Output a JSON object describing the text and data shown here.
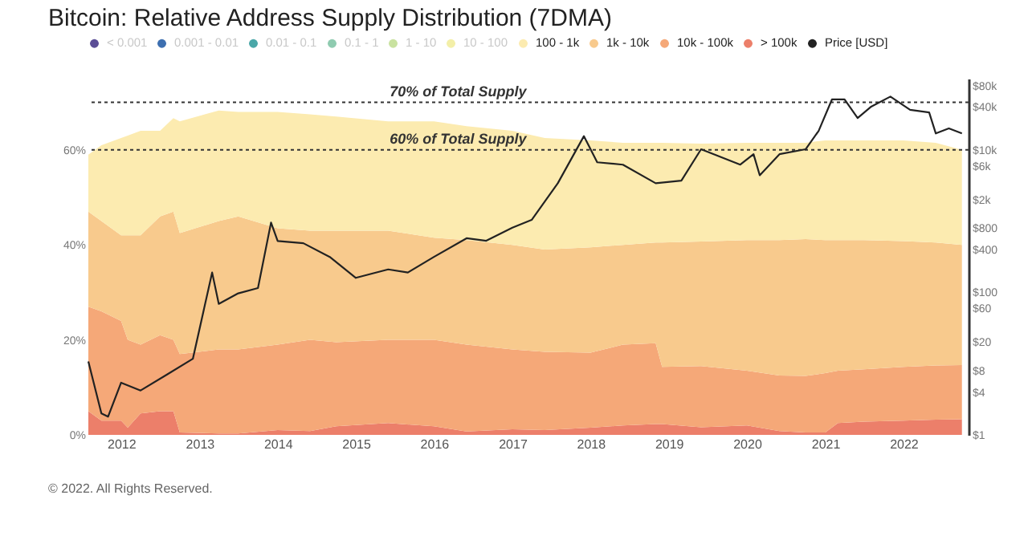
{
  "chart_data": {
    "type": "area",
    "title": "Bitcoin: Relative Address Supply Distribution (7DMA)",
    "stacked": true,
    "legend": "top",
    "log": "y2",
    "x": [
      "2011-08",
      "2011-10",
      "2012-01",
      "2012-02",
      "2012-04",
      "2012-07",
      "2012-09",
      "2012-10",
      "2013-04",
      "2013-07",
      "2014-01",
      "2014-06",
      "2014-10",
      "2015-06",
      "2016-01",
      "2016-06",
      "2017-01",
      "2017-06",
      "2018-01",
      "2018-06",
      "2018-11",
      "2018-12",
      "2019-06",
      "2020-01",
      "2020-06",
      "2020-10",
      "2021-01",
      "2021-03",
      "2021-07",
      "2022-01",
      "2022-06",
      "2022-10"
    ],
    "xlim": [
      "2011-08",
      "2022-11"
    ],
    "xticks": [
      "2012",
      "2013",
      "2014",
      "2015",
      "2016",
      "2017",
      "2018",
      "2019",
      "2020",
      "2021",
      "2022"
    ],
    "ylim": [
      0,
      75
    ],
    "yticks": [
      {
        "value": 0,
        "label": "0%"
      },
      {
        "value": 20,
        "label": "20%"
      },
      {
        "value": 40,
        "label": "40%"
      },
      {
        "value": 60,
        "label": "60%"
      }
    ],
    "y2lim": [
      1,
      100000
    ],
    "y2ticks": [
      {
        "value": 1,
        "label": "$1"
      },
      {
        "value": 4,
        "label": "$4"
      },
      {
        "value": 8,
        "label": "$8"
      },
      {
        "value": 20,
        "label": "$20"
      },
      {
        "value": 60,
        "label": "$60"
      },
      {
        "value": 100,
        "label": "$100"
      },
      {
        "value": 400,
        "label": "$400"
      },
      {
        "value": 800,
        "label": "$800"
      },
      {
        "value": 2000,
        "label": "$2k"
      },
      {
        "value": 6000,
        "label": "$6k"
      },
      {
        "value": 10000,
        "label": "$10k"
      },
      {
        "value": 40000,
        "label": "$40k"
      },
      {
        "value": 80000,
        "label": "$80k"
      }
    ],
    "series": [
      {
        "name": "< 0.001",
        "color": "#5b4e96",
        "values": [
          null,
          null,
          null,
          null,
          null,
          null,
          null,
          null,
          null,
          null,
          null,
          null,
          null,
          null,
          null,
          null,
          null,
          null,
          null,
          null,
          null,
          null,
          null,
          null,
          null,
          null,
          null,
          null,
          null,
          null,
          null,
          null
        ]
      },
      {
        "name": "0.001 - 0.01",
        "color": "#3d6fb0",
        "values": [
          null,
          null,
          null,
          null,
          null,
          null,
          null,
          null,
          null,
          null,
          null,
          null,
          null,
          null,
          null,
          null,
          null,
          null,
          null,
          null,
          null,
          null,
          null,
          null,
          null,
          null,
          null,
          null,
          null,
          null,
          null,
          null
        ]
      },
      {
        "name": "0.01 - 0.1",
        "color": "#4aa7a8",
        "values": [
          null,
          null,
          null,
          null,
          null,
          null,
          null,
          null,
          null,
          null,
          null,
          null,
          null,
          null,
          null,
          null,
          null,
          null,
          null,
          null,
          null,
          null,
          null,
          null,
          null,
          null,
          null,
          null,
          null,
          null,
          null,
          null
        ]
      },
      {
        "name": "0.1 - 1",
        "color": "#8fcbb0",
        "values": [
          null,
          null,
          null,
          null,
          null,
          null,
          null,
          null,
          null,
          null,
          null,
          null,
          null,
          null,
          null,
          null,
          null,
          null,
          null,
          null,
          null,
          null,
          null,
          null,
          null,
          null,
          null,
          null,
          null,
          null,
          null,
          null
        ]
      },
      {
        "name": "1 - 10",
        "color": "#c9e2a0",
        "values": [
          null,
          null,
          null,
          null,
          null,
          null,
          null,
          null,
          null,
          null,
          null,
          null,
          null,
          null,
          null,
          null,
          null,
          null,
          null,
          null,
          null,
          null,
          null,
          null,
          null,
          null,
          null,
          null,
          null,
          null,
          null,
          null
        ]
      },
      {
        "name": "10 - 100",
        "color": "#f3efa8",
        "values": [
          null,
          null,
          null,
          null,
          null,
          null,
          null,
          null,
          null,
          null,
          null,
          null,
          null,
          null,
          null,
          null,
          null,
          null,
          null,
          null,
          null,
          null,
          null,
          null,
          null,
          null,
          null,
          null,
          null,
          null,
          null,
          null
        ]
      },
      {
        "name": "> 100k",
        "color": "#ec7f6a",
        "values": [
          5,
          3,
          3,
          1.5,
          4.5,
          5,
          5,
          0.5,
          0.3,
          0.3,
          1,
          0.8,
          1.8,
          2.5,
          1.8,
          0.7,
          1.2,
          1,
          1.5,
          2,
          2.3,
          2.3,
          1.6,
          2,
          0.8,
          0.5,
          0.5,
          2.5,
          2.8,
          3,
          3.2,
          3.3
        ]
      },
      {
        "name": "10k - 100k",
        "color": "#f5a878",
        "values": [
          22,
          23,
          21,
          18.5,
          14.5,
          16,
          15,
          16.5,
          17.7,
          17.7,
          18,
          19.2,
          17.7,
          17.5,
          18.2,
          18.3,
          16.8,
          16.5,
          15.8,
          17,
          17,
          12,
          12.9,
          11.5,
          11.7,
          11.9,
          12.5,
          11,
          11,
          11.3,
          11.4,
          11.4
        ]
      },
      {
        "name": "1k - 10k",
        "color": "#f8ca8d",
        "values": [
          20,
          19,
          18,
          22,
          23,
          25,
          27,
          25.5,
          27,
          28,
          24.5,
          23,
          23.5,
          23,
          21.5,
          22,
          22,
          21.5,
          22.2,
          21,
          21.2,
          26.2,
          26.2,
          27.5,
          28.5,
          28.8,
          28,
          27.5,
          27.2,
          26.5,
          25.9,
          25.3
        ]
      },
      {
        "name": "100 - 1k",
        "color": "#fcebb0",
        "values": [
          12,
          16,
          20.5,
          21,
          22,
          18,
          19.7,
          23.5,
          23.3,
          22,
          24.5,
          24.5,
          24,
          23,
          24.5,
          24,
          24,
          23.5,
          22.5,
          21.5,
          21,
          21,
          20.6,
          20.5,
          20.5,
          20.3,
          21,
          21,
          21,
          21.2,
          21,
          20
        ]
      },
      {
        "name": "Price [USD]",
        "type": "line",
        "axis": "y2",
        "color": "#222222",
        "x": [
          "2011-08",
          "2011-10",
          "2011-11",
          "2012-01",
          "2012-04",
          "2012-08",
          "2012-12",
          "2013-03",
          "2013-04",
          "2013-07",
          "2013-10",
          "2013-12",
          "2014-01",
          "2014-05",
          "2014-09",
          "2015-01",
          "2015-06",
          "2015-09",
          "2016-01",
          "2016-06",
          "2016-09",
          "2017-01",
          "2017-04",
          "2017-08",
          "2017-12",
          "2018-02",
          "2018-06",
          "2018-11",
          "2019-03",
          "2019-06",
          "2019-12",
          "2020-02",
          "2020-03",
          "2020-06",
          "2020-10",
          "2020-12",
          "2021-02",
          "2021-04",
          "2021-06",
          "2021-08",
          "2021-11",
          "2022-02",
          "2022-05",
          "2022-06",
          "2022-08",
          "2022-10"
        ],
        "values": [
          10.7,
          2,
          1.8,
          5.4,
          4.2,
          7,
          11.7,
          190,
          69,
          97,
          115,
          955,
          525,
          490,
          315,
          160,
          210,
          190,
          315,
          575,
          530,
          810,
          1040,
          3400,
          15600,
          6700,
          6200,
          3400,
          3700,
          10200,
          6200,
          8700,
          4400,
          8700,
          10200,
          18500,
          51000,
          51000,
          28000,
          40000,
          56000,
          36500,
          33600,
          17000,
          20000,
          17000
        ]
      }
    ],
    "ref_lines": [
      {
        "axis": "y",
        "value": 70,
        "label": "70% of Total Supply",
        "color": "#333333",
        "line_style": "dotted"
      },
      {
        "axis": "y",
        "value": 60,
        "label": "60% of Total Supply",
        "color": "#333333",
        "line_style": "dotted"
      }
    ],
    "annotations": [
      "© 2022. All Rights Reserved."
    ]
  }
}
